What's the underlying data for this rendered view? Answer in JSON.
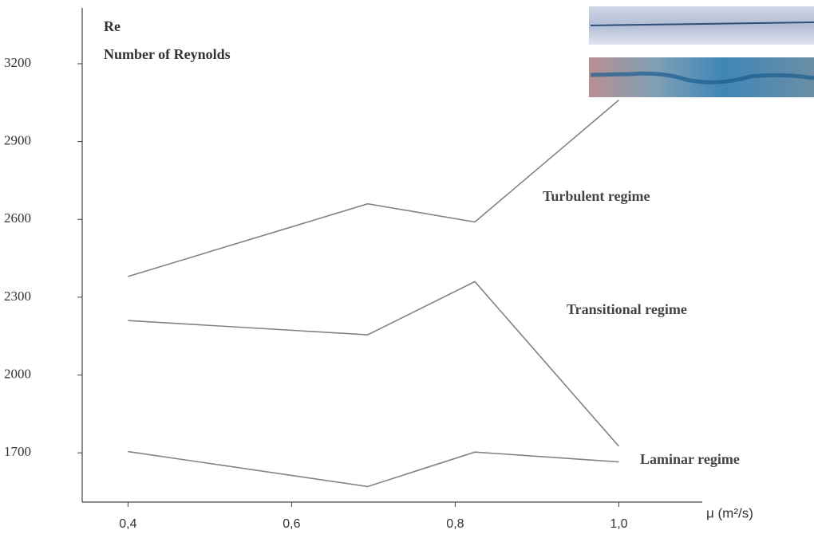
{
  "chart_data": {
    "type": "line",
    "y_label_short": "Re",
    "y_label": "Number of Reynolds",
    "x_label": "μ (m²/s)",
    "x": [
      0.4,
      0.693,
      0.824,
      1.0
    ],
    "series": [
      {
        "color": "#8a7f80",
        "values": [
          2380,
          2660,
          2590,
          3060
        ]
      },
      {
        "color": "#8a7f80",
        "values": [
          2210,
          2155,
          2360,
          1725
        ]
      },
      {
        "color": "#8a7f80",
        "values": [
          1705,
          1570,
          1703,
          1665
        ]
      }
    ],
    "annotations": [
      "Turbulent regime",
      "Transitional regime",
      "Laminar regime"
    ],
    "xlim": [
      0.344,
      1.102
    ],
    "ylim": [
      1510,
      3415
    ],
    "xticks": [
      {
        "value": 0.4,
        "label": "0,4"
      },
      {
        "value": 0.6,
        "label": "0,6"
      },
      {
        "value": 0.8,
        "label": "0,8"
      },
      {
        "value": 1.0,
        "label": "1,0"
      }
    ],
    "yticks": [
      1700,
      2000,
      2300,
      2600,
      2900,
      3200
    ]
  }
}
